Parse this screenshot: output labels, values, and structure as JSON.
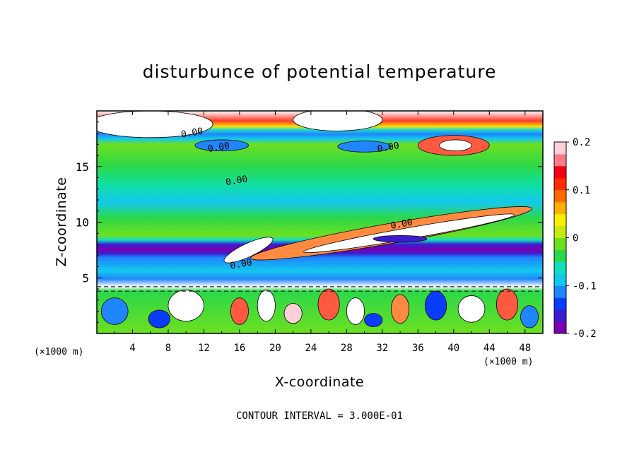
{
  "chart_data": {
    "type": "heatmap",
    "title": "disturbunce of potential temperature",
    "xlabel": "X-coordinate",
    "ylabel": "Z-coordinate",
    "x_unit": "(×1000 m)",
    "y_unit": "(×1000 m)",
    "xlim": [
      0,
      50
    ],
    "ylim": [
      0,
      20
    ],
    "xticks": [
      "4",
      "8",
      "12",
      "16",
      "20",
      "24",
      "28",
      "32",
      "36",
      "40",
      "44",
      "48"
    ],
    "yticks": [
      "5",
      "10",
      "15"
    ],
    "colorbar": {
      "range": [
        -0.2,
        0.2
      ],
      "tick_labels": [
        "0.2",
        "0.1",
        "0",
        "-0.1",
        "-0.2"
      ],
      "colors": [
        "#7a00b0",
        "#3b1ccf",
        "#0a3cff",
        "#1f86ff",
        "#13c8ee",
        "#10e0c0",
        "#2bd84a",
        "#6ce020",
        "#c8e810",
        "#f8f000",
        "#ffb000",
        "#ff6a00",
        "#ff2a00",
        "#ee0015",
        "#ff7a8a",
        "#ffd0d8"
      ]
    },
    "contour_labels": [
      "0.00",
      "0.00",
      "0.00",
      "0.00",
      "0.00",
      "0.00"
    ],
    "annotation": "CONTOUR INTERVAL = 3.000E-01"
  }
}
